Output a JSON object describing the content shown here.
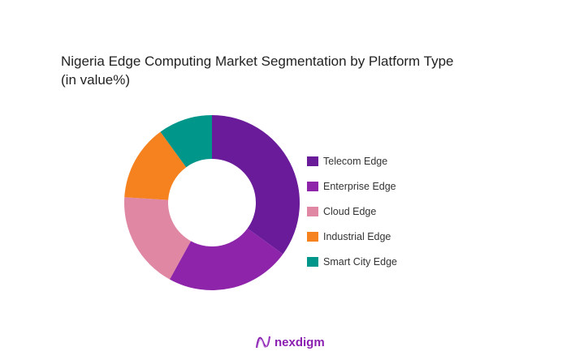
{
  "chart_data": {
    "type": "pie",
    "variant": "donut",
    "title": "Nigeria Edge Computing Market Segmentation by Platform Type",
    "subtitle": "(in value%)",
    "categories": [
      "Telecom Edge",
      "Enterprise Edge",
      "Cloud Edge",
      "Industrial Edge",
      "Smart City Edge"
    ],
    "values": [
      35,
      23,
      18,
      14,
      10
    ],
    "unit": "%",
    "colors": [
      "#6a1b9a",
      "#8e24aa",
      "#df87a3",
      "#f5821f",
      "#00968a"
    ],
    "legend_position": "right"
  },
  "brand": {
    "name": "nexdigm",
    "color": "#8a1fb0"
  }
}
